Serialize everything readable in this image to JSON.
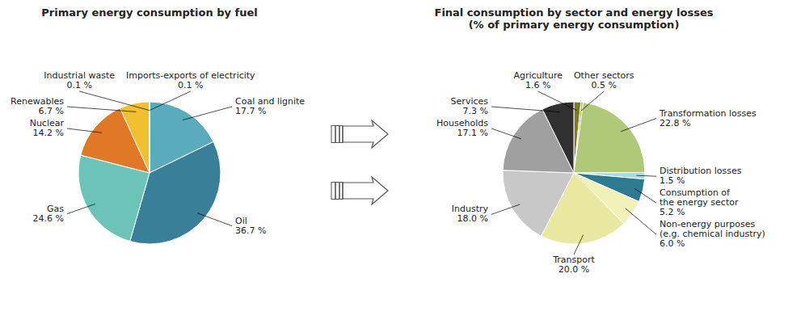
{
  "chart_data": [
    {
      "type": "pie",
      "title": "Primary energy consumption by fuel",
      "categories": [
        "Imports-exports of electricity",
        "Coal and lignite",
        "Oil",
        "Gas",
        "Nuclear",
        "Renewables",
        "Industrial waste"
      ],
      "values": [
        0.1,
        17.7,
        36.7,
        24.6,
        14.2,
        6.7,
        0.1
      ],
      "value_labels": [
        "0.1 %",
        "17.7 %",
        "36.7 %",
        "24.6 %",
        "14.2 %",
        "6.7 %",
        "0.1 %"
      ],
      "colors": [
        "#b0d8e8",
        "#5aabbc",
        "#3a7f9a",
        "#6cc4b8",
        "#e07828",
        "#f0c030",
        "#666666"
      ]
    },
    {
      "type": "pie",
      "title": "Final consumption by sector and energy losses\n(% of primary energy consumption)",
      "categories": [
        "Agriculture",
        "Other sectors",
        "Transformation losses",
        "Distribution losses",
        "Consumption of\nthe energy sector",
        "Non-energy purposes\n(e.g. chemical industry)",
        "Transport",
        "Industry",
        "Households",
        "Services"
      ],
      "values": [
        1.6,
        0.5,
        22.8,
        1.5,
        5.2,
        6.0,
        20.0,
        18.0,
        17.1,
        7.3
      ],
      "value_labels": [
        "1.6 %",
        "0.5 %",
        "22.8 %",
        "1.5 %",
        "5.2 %",
        "6.0 %",
        "20.0 %",
        "18.0 %",
        "17.1 %",
        "7.3 %"
      ],
      "colors": [
        "#7a7a28",
        "#b8b840",
        "#b0c87a",
        "#a8dce0",
        "#2e7a90",
        "#f0f0b8",
        "#e8e8a0",
        "#c8c8c8",
        "#a0a0a0",
        "#303030"
      ]
    }
  ]
}
